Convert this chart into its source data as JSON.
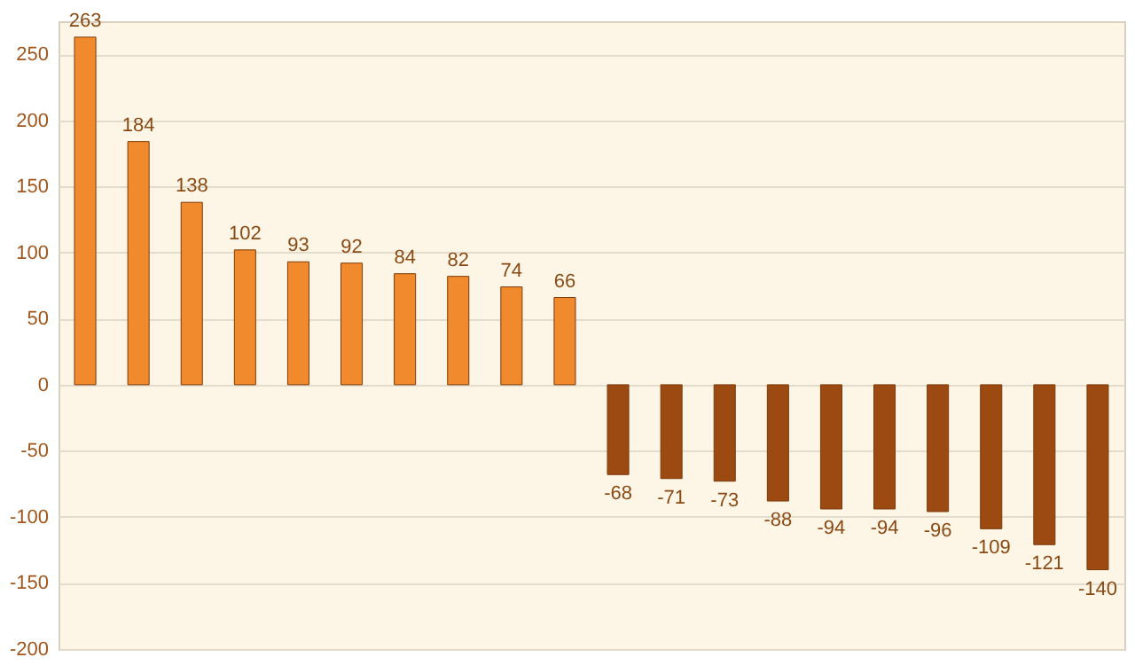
{
  "chart_data": {
    "type": "bar",
    "categories": [
      null,
      null,
      null,
      null,
      null,
      null,
      null,
      null,
      null,
      null,
      null,
      null,
      null,
      null,
      null,
      null,
      null,
      null,
      null,
      null
    ],
    "values": [
      263,
      184,
      138,
      102,
      93,
      92,
      84,
      82,
      74,
      66,
      -68,
      -71,
      -73,
      -88,
      -94,
      -94,
      -96,
      -109,
      -121,
      -140
    ],
    "colors": [
      "#f08a2c",
      "#f08a2c",
      "#f08a2c",
      "#f08a2c",
      "#f08a2c",
      "#f08a2c",
      "#f08a2c",
      "#f08a2c",
      "#f08a2c",
      "#f08a2c",
      "#9c4a12",
      "#9c4a12",
      "#9c4a12",
      "#9c4a12",
      "#9c4a12",
      "#9c4a12",
      "#9c4a12",
      "#9c4a12",
      "#9c4a12",
      "#9c4a12"
    ],
    "ylim": [
      -200,
      275
    ],
    "yticks": [
      -200,
      -150,
      -100,
      -50,
      0,
      50,
      100,
      150,
      200,
      250
    ],
    "grid": "y",
    "data_labels": true
  }
}
